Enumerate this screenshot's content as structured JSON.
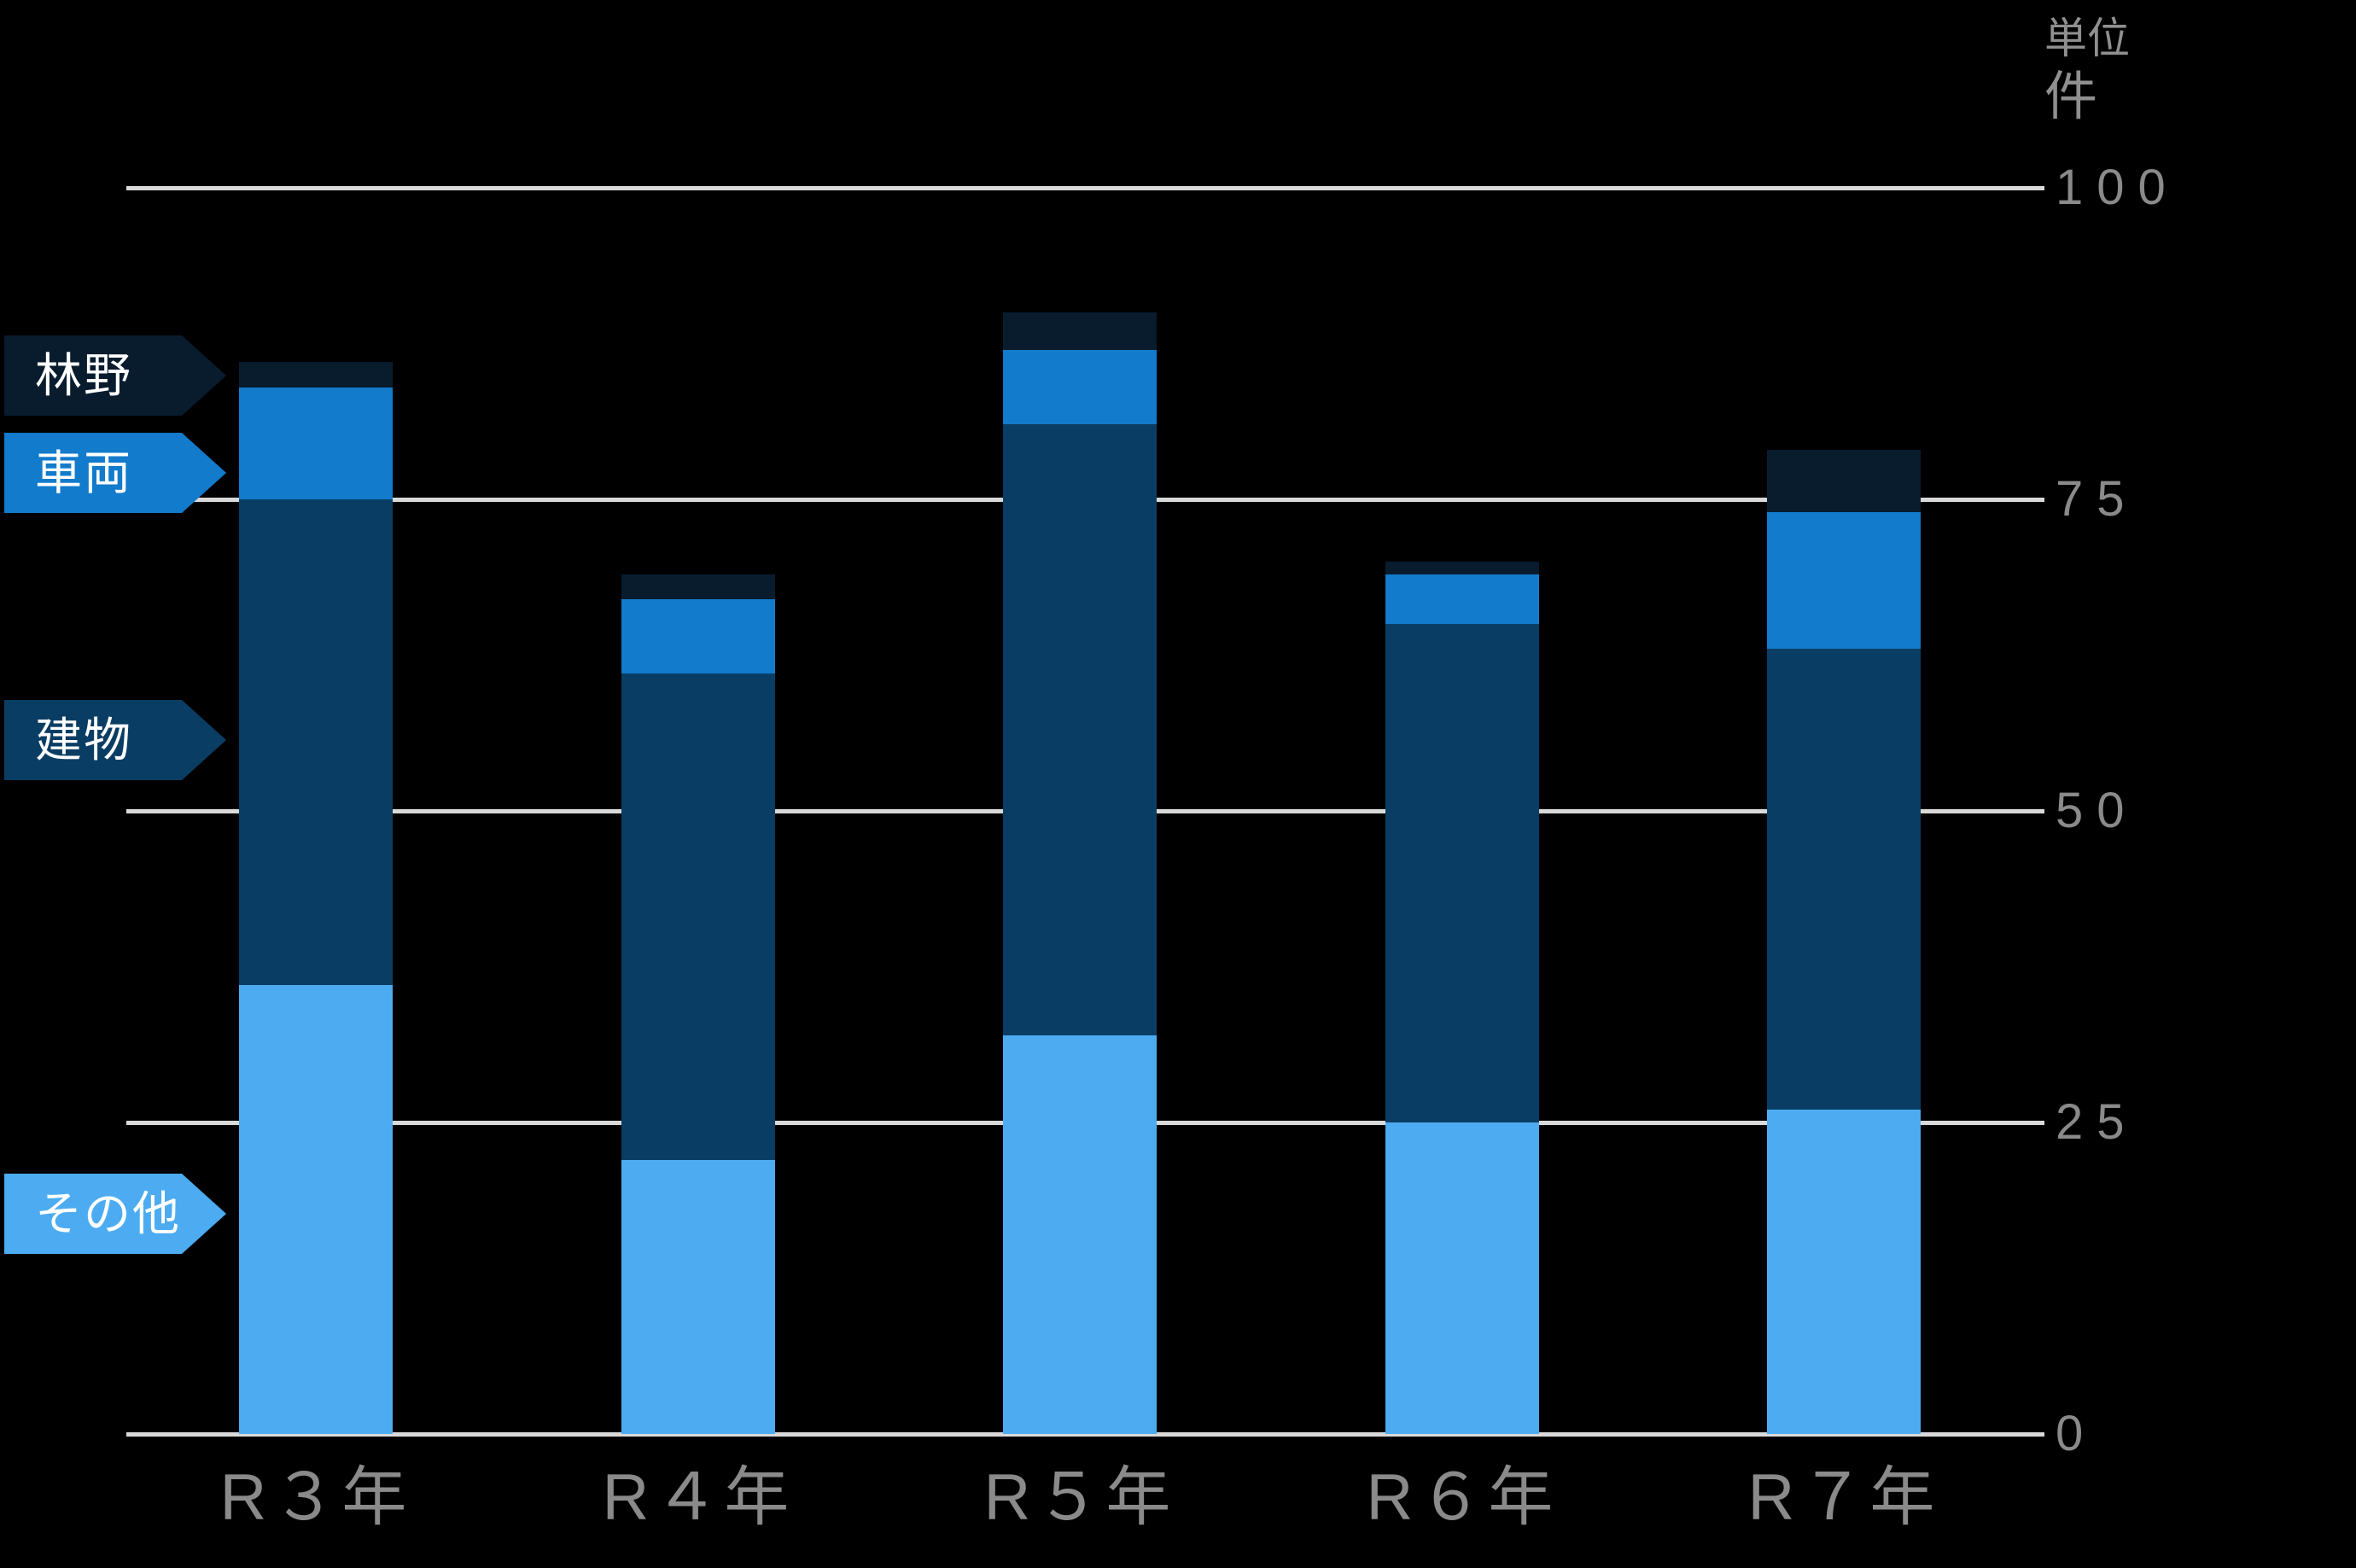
{
  "chart_data": {
    "type": "bar",
    "stacked": true,
    "title": "",
    "categories": [
      "R３年",
      "R４年",
      "R５年",
      "R６年",
      "R７年"
    ],
    "series": [
      {
        "name": "その他",
        "color": "#4DACF1",
        "values": [
          36,
          22,
          32,
          25,
          26
        ]
      },
      {
        "name": "建物",
        "color": "#0A3D63",
        "values": [
          39,
          39,
          49,
          40,
          37
        ]
      },
      {
        "name": "車両",
        "color": "#127BCC",
        "values": [
          9,
          6,
          6,
          4,
          11
        ]
      },
      {
        "name": "林野",
        "color": "#081C2E",
        "values": [
          2,
          2,
          3,
          1,
          5
        ]
      }
    ],
    "totals": [
      86,
      69,
      90,
      70,
      79
    ],
    "yticks": [
      0,
      25,
      50,
      75,
      100
    ],
    "ylim": [
      0,
      100
    ],
    "grid": true,
    "legend_position": "left",
    "unit_caption": {
      "line1": "単位",
      "line2": "件"
    },
    "background": "#000000",
    "gridline_color": "#D9D9D9",
    "axis_text_color": "#8A8A8A"
  },
  "legend": {
    "items": [
      {
        "label": "林野",
        "color": "#081C2E"
      },
      {
        "label": "車両",
        "color": "#127BCC"
      },
      {
        "label": "建物",
        "color": "#0A3D63"
      },
      {
        "label": "その他",
        "color": "#4DACF1"
      }
    ]
  }
}
